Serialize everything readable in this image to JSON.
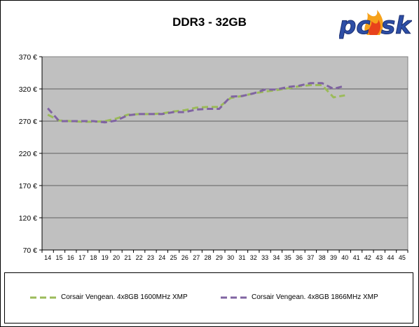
{
  "chart_data": {
    "type": "line",
    "title": "DDR3 - 32GB",
    "x": [
      14,
      15,
      16,
      17,
      18,
      19,
      20,
      21,
      22,
      23,
      24,
      25,
      26,
      27,
      28,
      29,
      30,
      31,
      32,
      33,
      34,
      35,
      36,
      37,
      38,
      39,
      40,
      41,
      42,
      43,
      44,
      45
    ],
    "y_ticks": [
      "70 €",
      "120 €",
      "170 €",
      "220 €",
      "270 €",
      "320 €",
      "370 €"
    ],
    "ylim": [
      70,
      370
    ],
    "grid": true,
    "legend_position": "bottom",
    "series": [
      {
        "name": "Corsair Vengean. 4x8GB 1600MHz XMP",
        "color": "#9bbb59",
        "values": [
          280,
          271,
          270,
          269,
          269,
          270,
          274,
          280,
          281,
          281,
          282,
          285,
          287,
          291,
          292,
          292,
          306,
          309,
          313,
          316,
          318,
          321,
          324,
          326,
          326,
          307,
          310,
          null,
          null,
          null,
          null,
          null
        ]
      },
      {
        "name": "Corsair Vengean. 4x8GB 1866MHz XMP",
        "color": "#8064a2",
        "values": [
          290,
          270,
          270,
          270,
          270,
          268,
          271,
          279,
          281,
          281,
          281,
          284,
          284,
          288,
          289,
          289,
          308,
          309,
          313,
          319,
          319,
          323,
          325,
          329,
          329,
          320,
          325,
          null,
          null,
          null,
          null,
          null
        ]
      }
    ]
  }
}
